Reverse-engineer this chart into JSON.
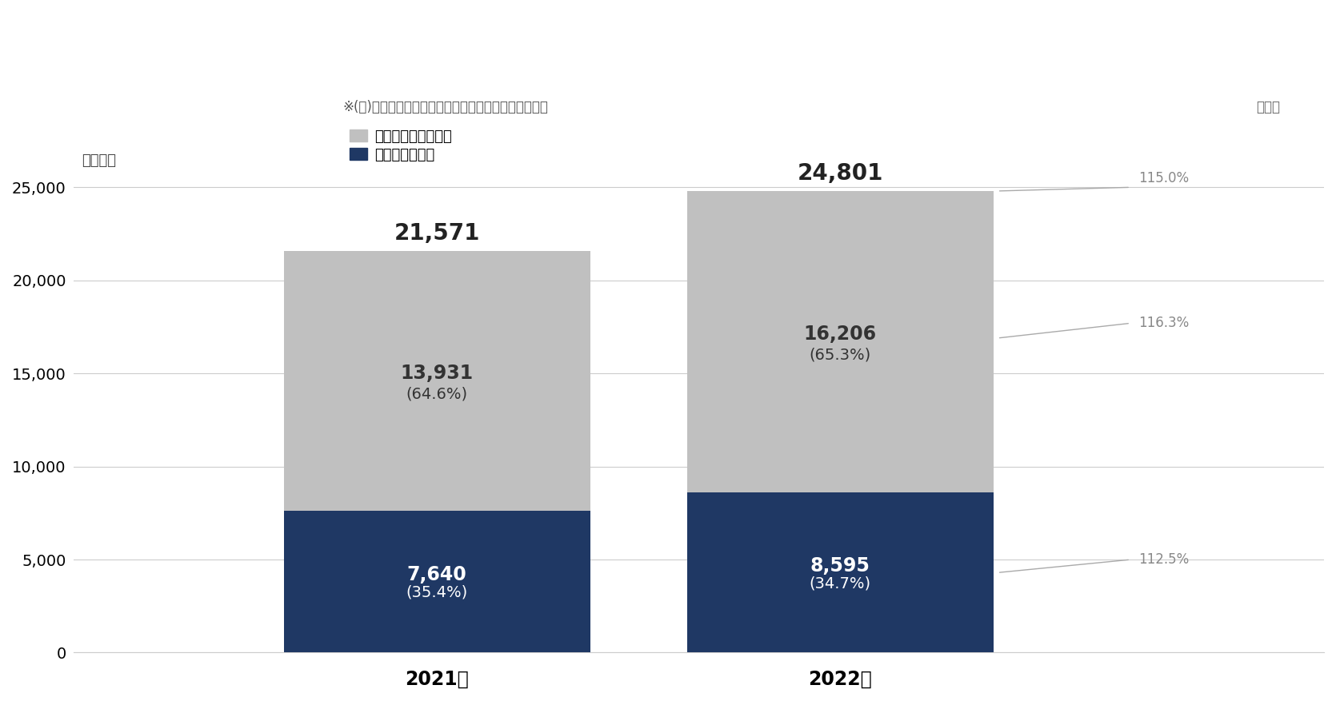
{
  "years": [
    "2021年",
    "2022年"
  ],
  "social_values": [
    7640,
    8595
  ],
  "other_values": [
    13931,
    16206
  ],
  "totals": [
    21571,
    24801
  ],
  "social_pcts": [
    "35.4%",
    "34.7%"
  ],
  "other_pcts": [
    "64.6%",
    "65.3%"
  ],
  "social_color": "#1f3864",
  "other_color": "#c0c0c0",
  "background_color": "#ffffff",
  "yoy_total": "115.0%",
  "yoy_other": "116.3%",
  "yoy_social": "112.5%",
  "note": "※(　)内は、インターネット広告媒体費に占める構成比",
  "legend_other": "ソーシャル広告以外",
  "legend_social": "ソーシャル広告",
  "yoy_label": "前年比",
  "ylabel": "（億円）",
  "ylim": [
    0,
    27000
  ],
  "yticks": [
    0,
    5000,
    10000,
    15000,
    20000,
    25000
  ],
  "bar_width": 0.38,
  "x_positions": [
    0.35,
    0.85
  ],
  "xlim": [
    -0.1,
    1.45
  ]
}
